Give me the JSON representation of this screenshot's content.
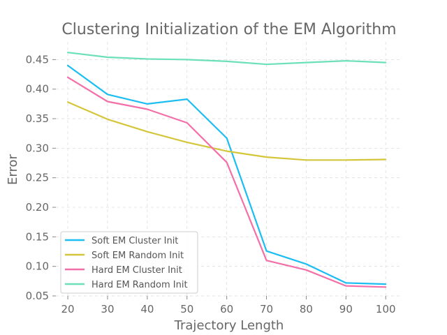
{
  "chart_data": {
    "type": "line",
    "title": "Clustering Initialization of the EM Algorithm",
    "xlabel": "Trajectory Length",
    "ylabel": "Error",
    "x": [
      20,
      30,
      40,
      50,
      60,
      70,
      80,
      90,
      100
    ],
    "xlim": [
      17,
      104
    ],
    "ylim": [
      0.05,
      0.48
    ],
    "xticks": [
      20,
      30,
      40,
      50,
      60,
      70,
      80,
      90,
      100
    ],
    "xtick_labels": [
      "20",
      "30",
      "40",
      "50",
      "60",
      "70",
      "80",
      "90",
      "100"
    ],
    "yticks": [
      0.05,
      0.1,
      0.15,
      0.2,
      0.25,
      0.3,
      0.35,
      0.4,
      0.45
    ],
    "ytick_labels": [
      "0.05",
      "0.10",
      "0.15",
      "0.20",
      "0.25",
      "0.30",
      "0.35",
      "0.40",
      "0.45"
    ],
    "grid": true,
    "legend_position": "lower-left",
    "series": [
      {
        "name": "Soft EM Cluster Init",
        "color": "#1bbdf2",
        "values": [
          0.44,
          0.391,
          0.375,
          0.383,
          0.317,
          0.126,
          0.104,
          0.072,
          0.07
        ]
      },
      {
        "name": "Soft EM Random Init",
        "color": "#d4c63a",
        "values": [
          0.378,
          0.349,
          0.328,
          0.31,
          0.295,
          0.285,
          0.28,
          0.28,
          0.281
        ]
      },
      {
        "name": "Hard EM Cluster Init",
        "color": "#f36fa8",
        "values": [
          0.42,
          0.379,
          0.366,
          0.343,
          0.276,
          0.11,
          0.094,
          0.067,
          0.065
        ]
      },
      {
        "name": "Hard EM Random Init",
        "color": "#6ce0b8",
        "values": [
          0.462,
          0.454,
          0.451,
          0.45,
          0.447,
          0.442,
          0.445,
          0.448,
          0.445
        ]
      }
    ]
  }
}
